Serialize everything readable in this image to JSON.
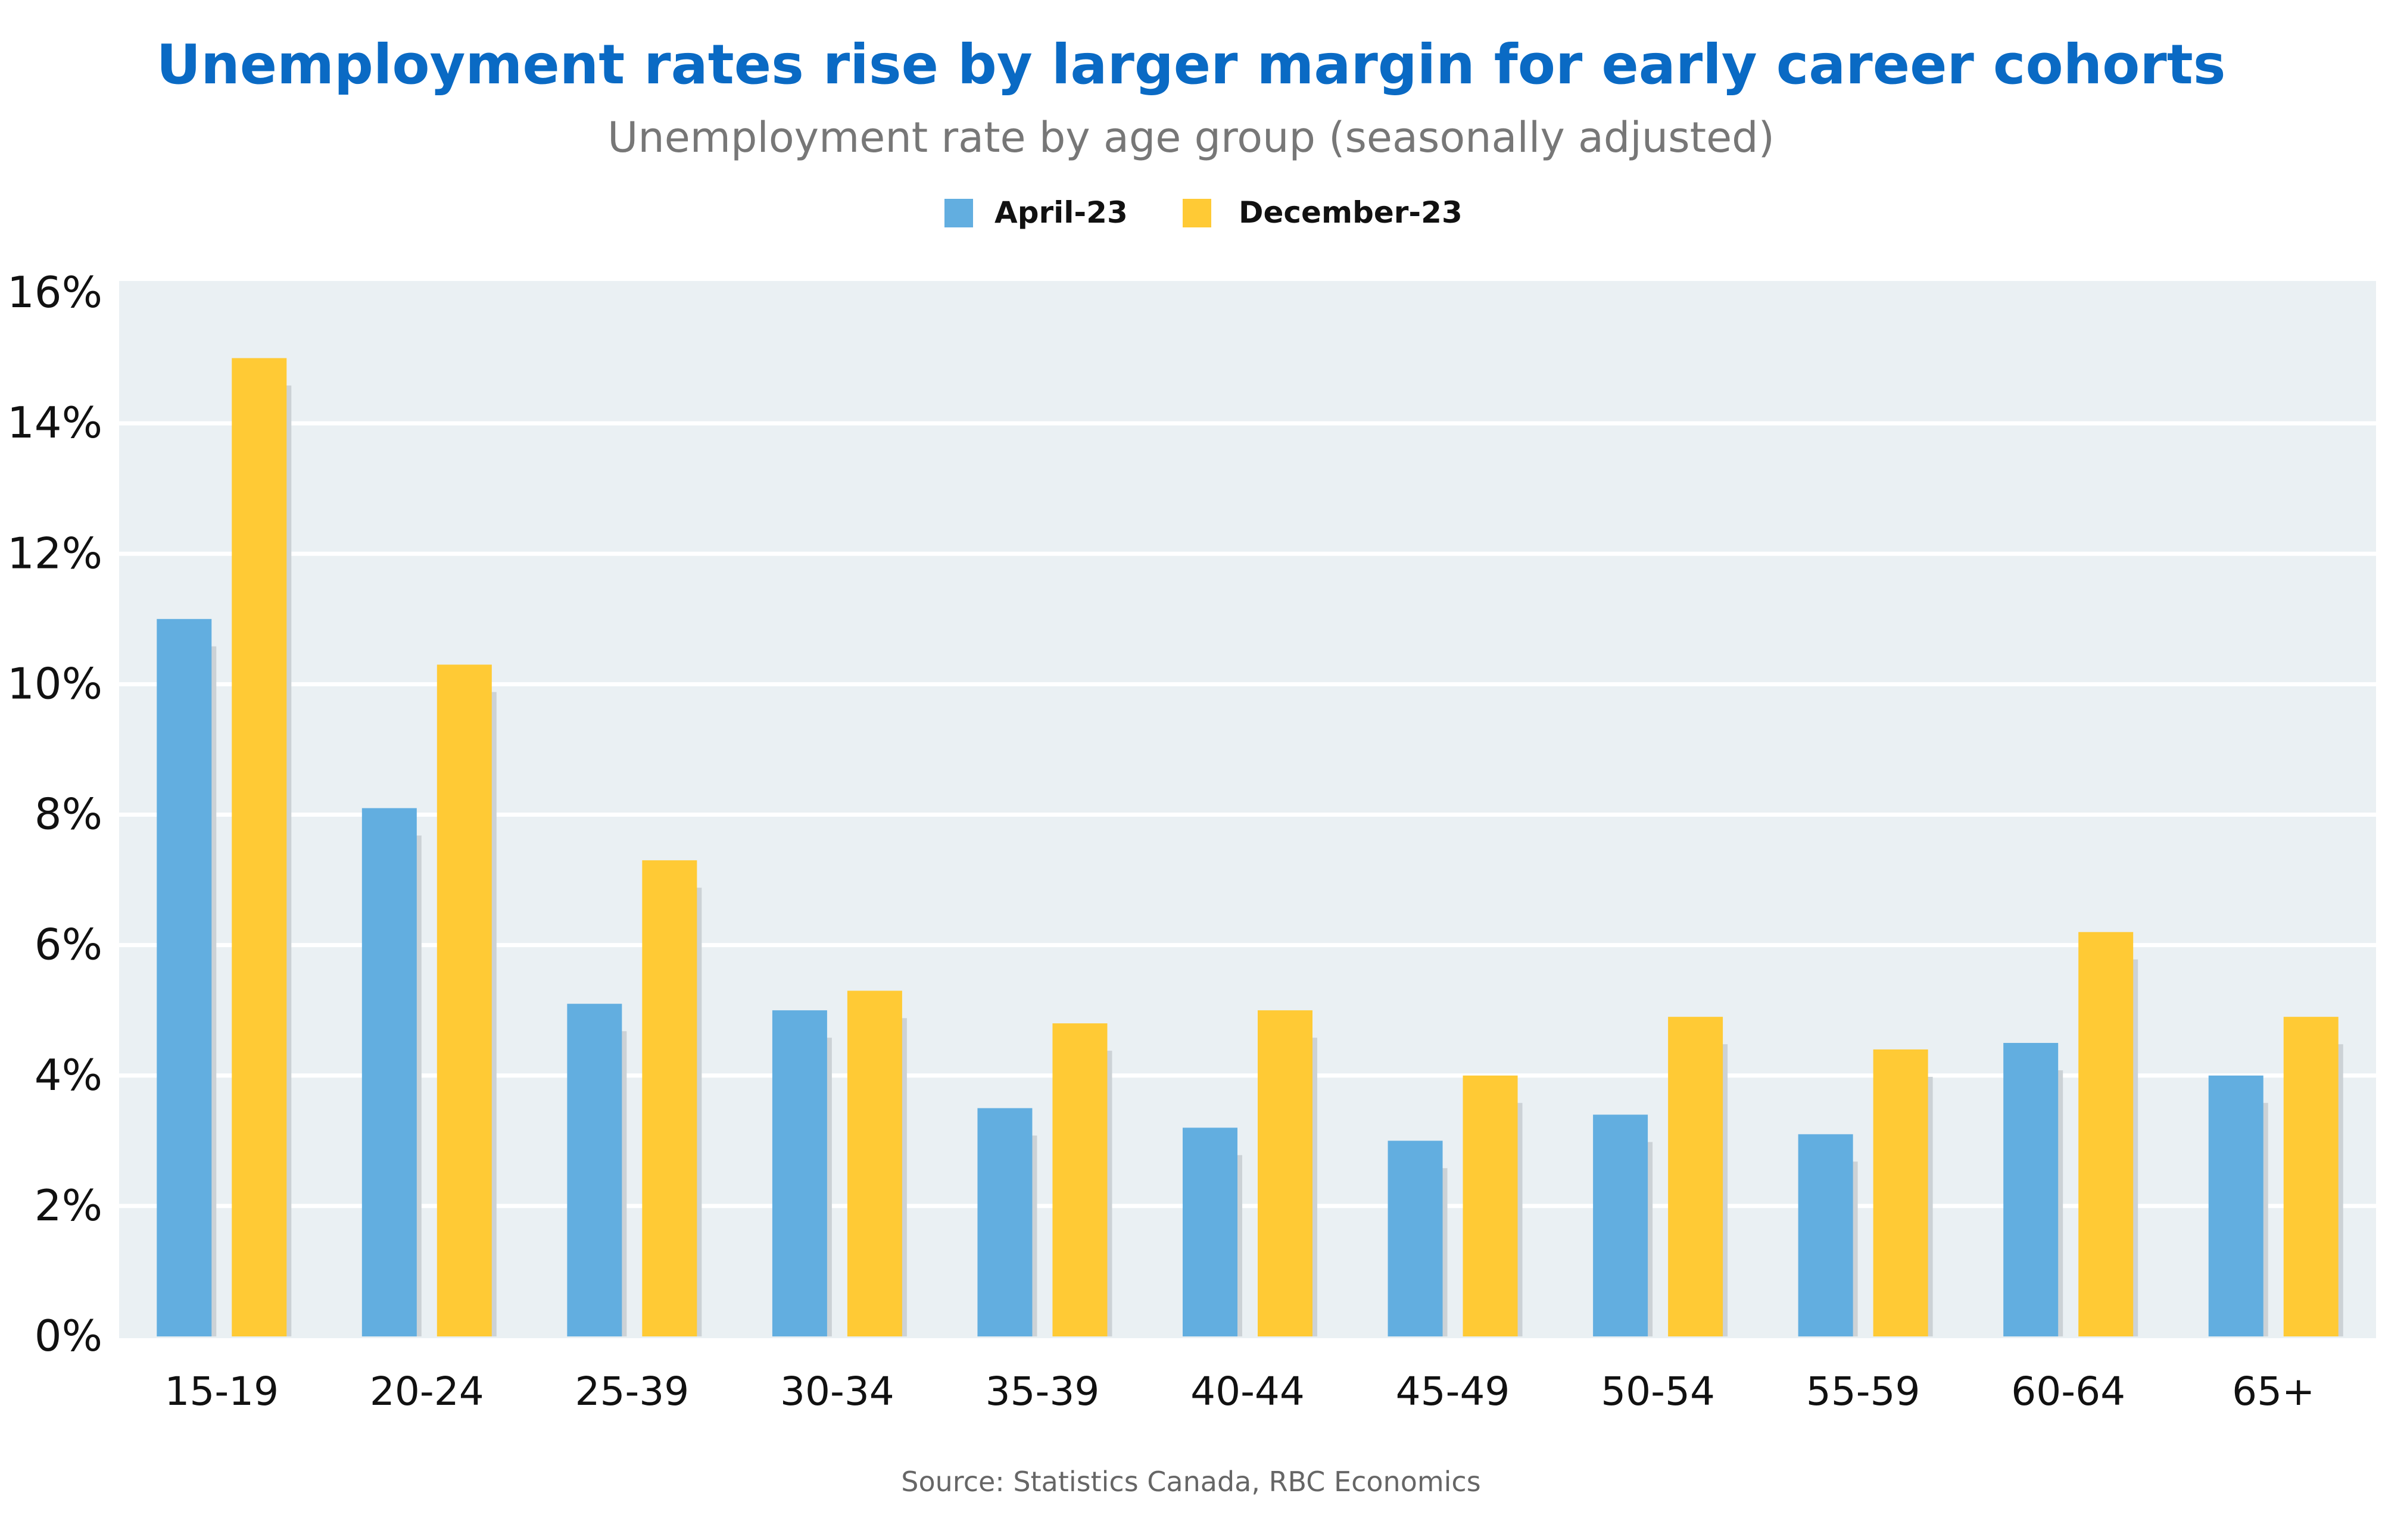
{
  "chart_data": {
    "type": "bar",
    "title": "Unemployment rates rise by larger margin for early career cohorts",
    "subtitle": "Unemployment rate by age group (seasonally adjusted)",
    "categories": [
      "15-19",
      "20-24",
      "25-39",
      "30-34",
      "35-39",
      "40-44",
      "45-49",
      "50-54",
      "55-59",
      "60-64",
      "65+"
    ],
    "series": [
      {
        "name": "April-23",
        "color": "#62AEE0",
        "values": [
          11.0,
          8.1,
          5.1,
          5.0,
          3.5,
          3.2,
          3.0,
          3.4,
          3.1,
          4.5,
          4.0
        ]
      },
      {
        "name": "December-23",
        "color": "#FFCA35",
        "values": [
          15.0,
          10.3,
          7.3,
          5.3,
          4.8,
          5.0,
          4.0,
          4.9,
          4.4,
          6.2,
          4.9
        ]
      }
    ],
    "y_ticks": [
      "0%",
      "2%",
      "4%",
      "6%",
      "8%",
      "10%",
      "12%",
      "14%",
      "16%"
    ],
    "ylim": [
      0,
      16
    ],
    "grid": true,
    "legend_position": "top-center",
    "source": "Source: Statistics Canada, RBC Economics",
    "title_color": "#0A6AC4",
    "plot_background": "#EAF0F3"
  }
}
